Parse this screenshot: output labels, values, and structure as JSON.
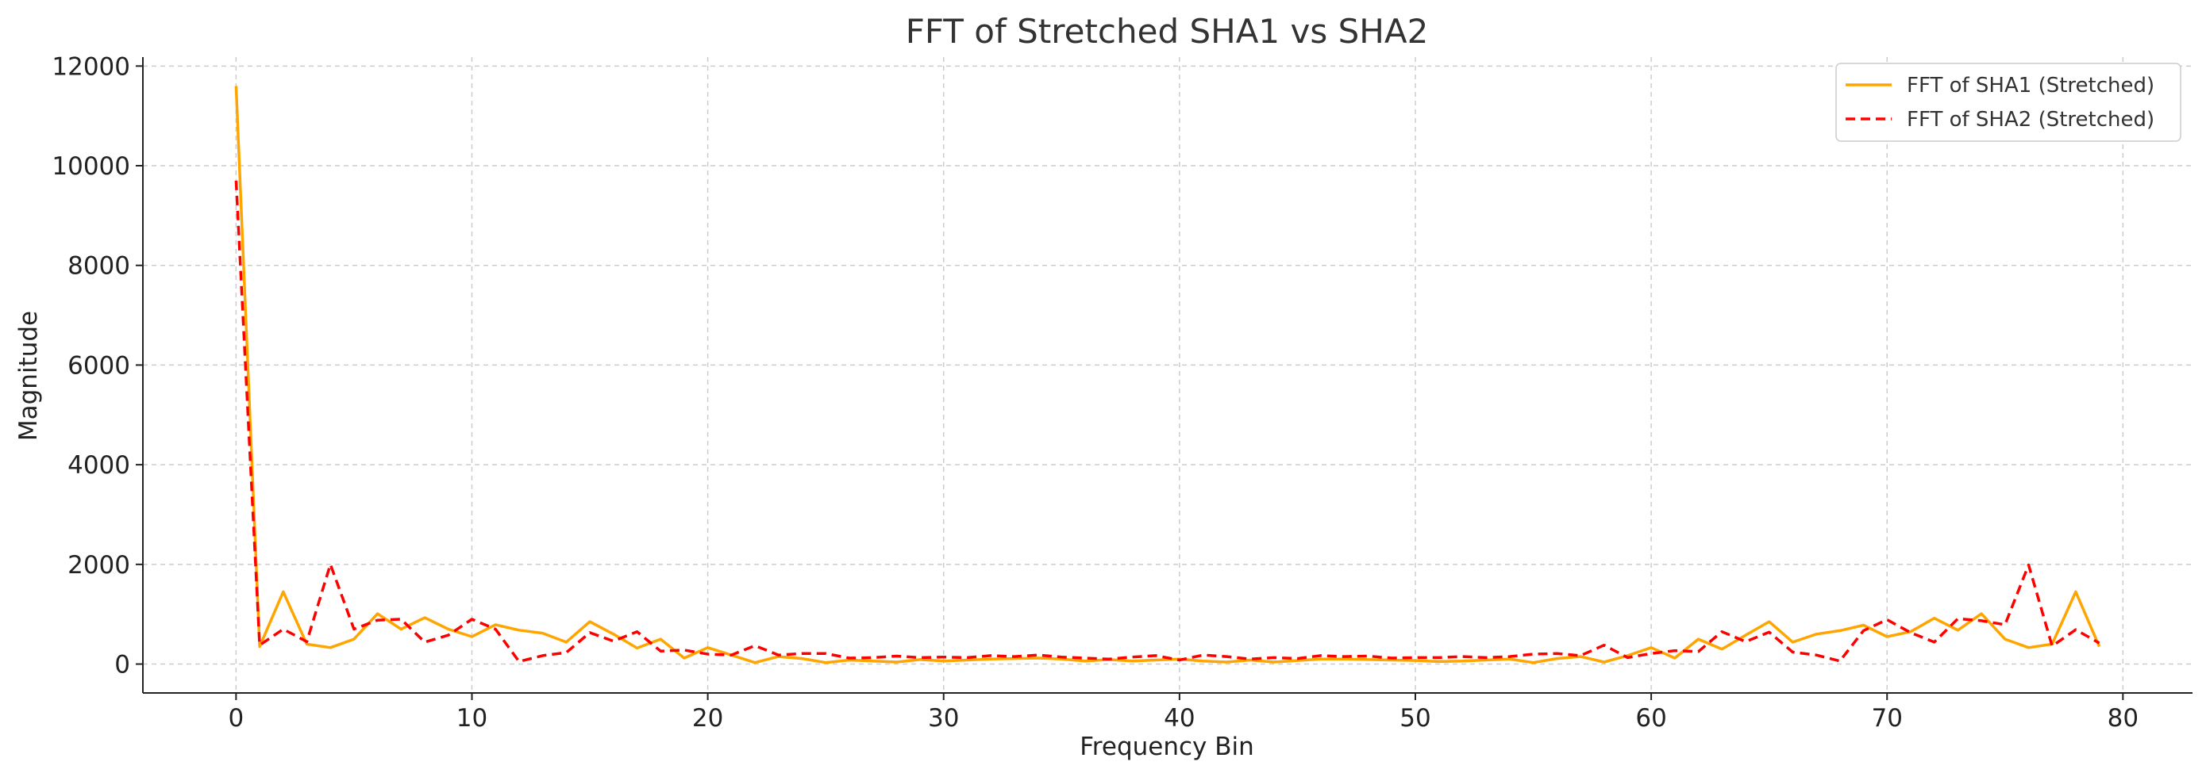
{
  "chart_data": {
    "type": "line",
    "title": "FFT of Stretched SHA1 vs SHA2",
    "xlabel": "Frequency Bin",
    "ylabel": "Magnitude",
    "xlim": [
      -3.95,
      82.95
    ],
    "ylim": [
      -580,
      12180
    ],
    "xticks": [
      0,
      10,
      20,
      30,
      40,
      50,
      60,
      70,
      80
    ],
    "yticks": [
      0,
      2000,
      4000,
      6000,
      8000,
      10000,
      12000
    ],
    "grid": true,
    "legend_position": "top-right",
    "series": [
      {
        "name": "FFT of SHA1 (Stretched)",
        "color": "#FFA500",
        "linestyle": "solid",
        "x": [
          0,
          1,
          2,
          3,
          4,
          5,
          6,
          7,
          8,
          9,
          10,
          11,
          12,
          13,
          14,
          15,
          16,
          17,
          18,
          19,
          20,
          21,
          22,
          23,
          24,
          25,
          26,
          27,
          28,
          29,
          30,
          31,
          32,
          33,
          34,
          35,
          36,
          37,
          38,
          39,
          40,
          41,
          42,
          43,
          44,
          45,
          46,
          47,
          48,
          49,
          50,
          51,
          52,
          53,
          54,
          55,
          56,
          57,
          58,
          59,
          60,
          61,
          62,
          63,
          64,
          65,
          66,
          67,
          68,
          69,
          70,
          71,
          72,
          73,
          74,
          75,
          76,
          77,
          78,
          79
        ],
        "values": [
          11600,
          350,
          1450,
          400,
          330,
          500,
          1010,
          700,
          930,
          700,
          550,
          790,
          680,
          620,
          440,
          850,
          600,
          320,
          500,
          120,
          330,
          180,
          30,
          150,
          110,
          30,
          80,
          60,
          40,
          90,
          60,
          80,
          100,
          110,
          120,
          100,
          60,
          90,
          60,
          80,
          100,
          60,
          40,
          80,
          40,
          70,
          100,
          100,
          90,
          80,
          70,
          50,
          60,
          80,
          100,
          30,
          110,
          150,
          40,
          170,
          330,
          120,
          500,
          300,
          580,
          850,
          440,
          600,
          670,
          780,
          550,
          650,
          920,
          680,
          1010,
          500,
          330,
          400,
          1450,
          350
        ]
      },
      {
        "name": "FFT of SHA2 (Stretched)",
        "color": "#FF0000",
        "linestyle": "dashed",
        "x": [
          0,
          1,
          2,
          3,
          4,
          5,
          6,
          7,
          8,
          9,
          10,
          11,
          12,
          13,
          14,
          15,
          16,
          17,
          18,
          19,
          20,
          21,
          22,
          23,
          24,
          25,
          26,
          27,
          28,
          29,
          30,
          31,
          32,
          33,
          34,
          35,
          36,
          37,
          38,
          39,
          40,
          41,
          42,
          43,
          44,
          45,
          46,
          47,
          48,
          49,
          50,
          51,
          52,
          53,
          54,
          55,
          56,
          57,
          58,
          59,
          60,
          61,
          62,
          63,
          64,
          65,
          66,
          67,
          68,
          69,
          70,
          71,
          72,
          73,
          74,
          75,
          76,
          77,
          78,
          79
        ],
        "values": [
          9700,
          380,
          700,
          450,
          2000,
          700,
          880,
          900,
          440,
          580,
          900,
          700,
          50,
          170,
          230,
          630,
          460,
          650,
          260,
          280,
          200,
          180,
          370,
          180,
          210,
          210,
          120,
          130,
          160,
          130,
          140,
          130,
          170,
          150,
          180,
          140,
          120,
          100,
          140,
          170,
          80,
          180,
          150,
          100,
          130,
          110,
          170,
          150,
          160,
          120,
          130,
          130,
          150,
          130,
          150,
          200,
          210,
          170,
          380,
          130,
          210,
          270,
          250,
          650,
          450,
          640,
          240,
          180,
          60,
          670,
          890,
          630,
          440,
          910,
          870,
          790,
          1990,
          360,
          690,
          420
        ]
      }
    ]
  }
}
